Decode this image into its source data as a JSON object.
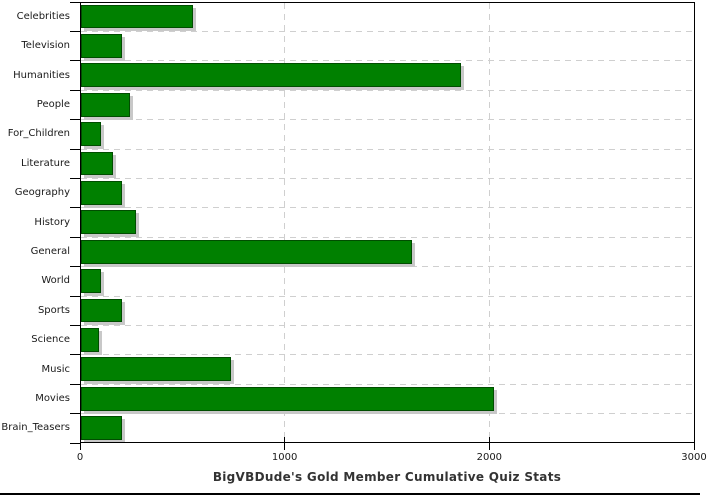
{
  "chart_data": {
    "type": "bar",
    "orientation": "horizontal",
    "title": "BigVBDude's Gold Member Cumulative Quiz Stats",
    "categories": [
      "Celebrities",
      "Television",
      "Humanities",
      "People",
      "For_Children",
      "Literature",
      "Geography",
      "History",
      "General",
      "World",
      "Sports",
      "Science",
      "Music",
      "Movies",
      "Brain_Teasers"
    ],
    "values": [
      545,
      200,
      1855,
      240,
      100,
      155,
      200,
      270,
      1615,
      100,
      200,
      90,
      735,
      2020,
      200
    ],
    "xlabel": "",
    "ylabel": "",
    "xlim": [
      0,
      3000
    ],
    "xticks": [
      0,
      1000,
      2000,
      3000
    ],
    "xtick_labels": [
      "0",
      "1000",
      "2000",
      "3000"
    ],
    "grid": true,
    "legend": false,
    "colors": {
      "bar_fill": "#008000",
      "bar_border": "#004d00",
      "bar_shadow": "#c8c8c8",
      "grid_line": "#cfcfcf",
      "axis": "#000000",
      "tick_label": "#1a1a1a",
      "title": "#333333",
      "background": "#ffffff"
    }
  }
}
